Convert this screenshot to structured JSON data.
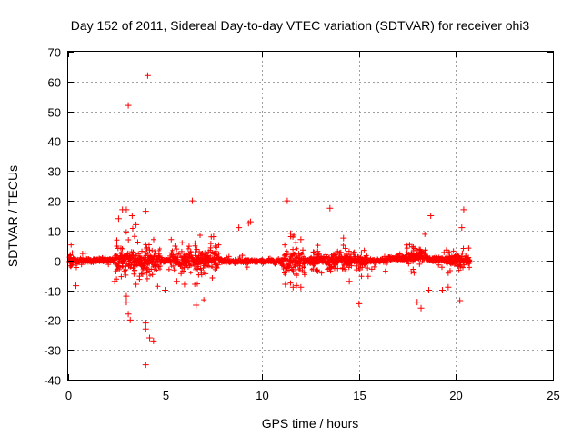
{
  "chart_data": {
    "type": "scatter",
    "title": "Day 152 of 2011, Sidereal Day-to-day VTEC variation (SDTVAR) for receiver ohi3",
    "xlabel": "GPS time / hours",
    "ylabel": "SDTVAR / TECUs",
    "xlim": [
      0,
      25
    ],
    "ylim": [
      -40,
      70
    ],
    "xticks": [
      0,
      5,
      10,
      15,
      20,
      25
    ],
    "yticks": [
      -40,
      -30,
      -20,
      -10,
      0,
      10,
      20,
      30,
      40,
      50,
      60,
      70
    ],
    "grid": true,
    "marker": "+",
    "color": "#ff0000",
    "series": [
      {
        "name": "SDTVAR",
        "outliers": [
          [
            4.1,
            62
          ],
          [
            3.1,
            52
          ],
          [
            6.4,
            20
          ],
          [
            11.3,
            20
          ],
          [
            13.5,
            17.5
          ],
          [
            20.4,
            17
          ],
          [
            2.8,
            17
          ],
          [
            3.0,
            17
          ],
          [
            4.0,
            16.5
          ],
          [
            18.7,
            15
          ],
          [
            9.3,
            12.5
          ],
          [
            9.4,
            13
          ],
          [
            8.8,
            11
          ],
          [
            20.3,
            11
          ],
          [
            3.5,
            12
          ],
          [
            2.6,
            14
          ],
          [
            3.3,
            15
          ],
          [
            7.5,
            8
          ],
          [
            12.0,
            7
          ],
          [
            14.2,
            7.5
          ],
          [
            3.0,
            -12
          ],
          [
            3.0,
            -14
          ],
          [
            3.1,
            -18
          ],
          [
            3.2,
            -20
          ],
          [
            4.0,
            -21
          ],
          [
            4.0,
            -23
          ],
          [
            4.2,
            -26
          ],
          [
            4.4,
            -27
          ],
          [
            4.0,
            -35
          ],
          [
            6.6,
            -15
          ],
          [
            15.0,
            -14.5
          ],
          [
            18.0,
            -14
          ],
          [
            18.2,
            -16
          ],
          [
            20.2,
            -13.5
          ],
          [
            18.6,
            -10
          ],
          [
            19.3,
            -10
          ],
          [
            19.6,
            -9
          ],
          [
            0.4,
            -8.5
          ],
          [
            2.4,
            -7
          ],
          [
            5.0,
            -10
          ],
          [
            6.0,
            -8
          ],
          [
            11.6,
            -9
          ],
          [
            12.0,
            -9
          ],
          [
            14.5,
            -7
          ],
          [
            5.6,
            -7
          ],
          [
            3.5,
            -8
          ],
          [
            11.2,
            -8
          ]
        ]
      }
    ]
  }
}
